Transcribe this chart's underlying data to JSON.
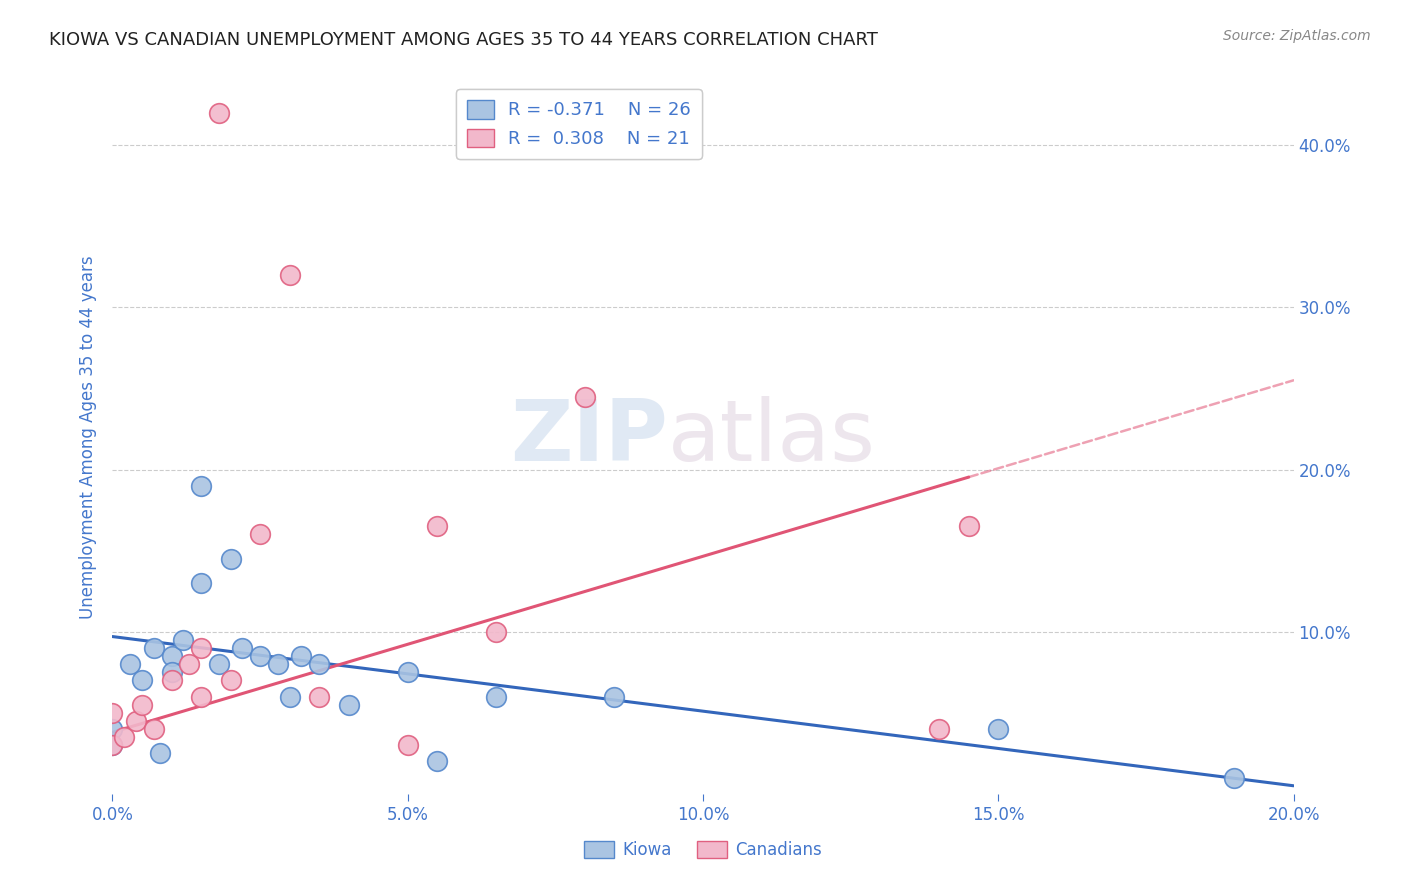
{
  "title": "KIOWA VS CANADIAN UNEMPLOYMENT AMONG AGES 35 TO 44 YEARS CORRELATION CHART",
  "source": "Source: ZipAtlas.com",
  "ylabel": "Unemployment Among Ages 35 to 44 years",
  "xlim": [
    0.0,
    0.2
  ],
  "ylim": [
    0.0,
    0.44
  ],
  "x_ticks": [
    0.0,
    0.05,
    0.1,
    0.15,
    0.2
  ],
  "x_tick_labels": [
    "0.0%",
    "5.0%",
    "10.0%",
    "15.0%",
    "20.0%"
  ],
  "y_ticks": [
    0.1,
    0.2,
    0.3,
    0.4
  ],
  "y_tick_labels": [
    "10.0%",
    "20.0%",
    "30.0%",
    "40.0%"
  ],
  "kiowa_color": "#aac4e2",
  "canadians_color": "#f2b8cb",
  "kiowa_edge_color": "#5588cc",
  "canadians_edge_color": "#e06080",
  "line_kiowa_color": "#3366bb",
  "line_canadians_color": "#e05575",
  "kiowa_R": -0.371,
  "kiowa_N": 26,
  "canadians_R": 0.308,
  "canadians_N": 21,
  "kiowa_x": [
    0.0,
    0.0,
    0.003,
    0.005,
    0.007,
    0.008,
    0.01,
    0.01,
    0.012,
    0.015,
    0.015,
    0.018,
    0.02,
    0.022,
    0.025,
    0.028,
    0.03,
    0.032,
    0.035,
    0.04,
    0.05,
    0.055,
    0.065,
    0.085,
    0.15,
    0.19
  ],
  "kiowa_y": [
    0.04,
    0.03,
    0.08,
    0.07,
    0.09,
    0.025,
    0.085,
    0.075,
    0.095,
    0.13,
    0.19,
    0.08,
    0.145,
    0.09,
    0.085,
    0.08,
    0.06,
    0.085,
    0.08,
    0.055,
    0.075,
    0.02,
    0.06,
    0.06,
    0.04,
    0.01
  ],
  "canadians_x": [
    0.0,
    0.0,
    0.002,
    0.004,
    0.005,
    0.007,
    0.01,
    0.013,
    0.015,
    0.015,
    0.018,
    0.02,
    0.025,
    0.03,
    0.035,
    0.05,
    0.055,
    0.065,
    0.08,
    0.14,
    0.145
  ],
  "canadians_y": [
    0.03,
    0.05,
    0.035,
    0.045,
    0.055,
    0.04,
    0.07,
    0.08,
    0.06,
    0.09,
    0.42,
    0.07,
    0.16,
    0.32,
    0.06,
    0.03,
    0.165,
    0.1,
    0.245,
    0.04,
    0.165
  ],
  "line_kiowa_x0": 0.0,
  "line_kiowa_y0": 0.097,
  "line_kiowa_x1": 0.2,
  "line_kiowa_y1": 0.005,
  "line_canadians_x0": 0.0,
  "line_canadians_y0": 0.038,
  "line_canadians_x1": 0.2,
  "line_canadians_y1": 0.255,
  "line_canadians_solid_end": 0.145,
  "watermark_zip": "ZIP",
  "watermark_atlas": "atlas",
  "background_color": "#ffffff",
  "grid_color": "#cccccc",
  "title_color": "#222222",
  "tick_label_color": "#4477cc"
}
